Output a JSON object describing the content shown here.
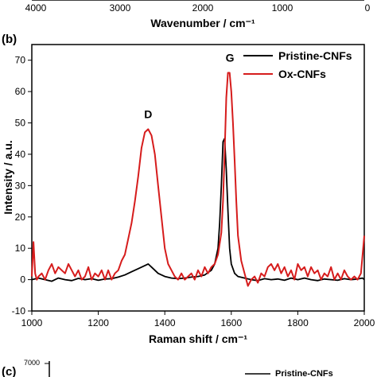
{
  "top_strip": {
    "ticks": [
      "4000",
      "3000",
      "2000",
      "1000",
      "0"
    ],
    "xlabel": "Wavenumber / cm⁻¹"
  },
  "chart_data": {
    "type": "line",
    "panel_label": "(b)",
    "xlabel": "Raman shift / cm⁻¹",
    "ylabel": "Intensity / a.u.",
    "xlim": [
      1000,
      2000
    ],
    "ylim": [
      -10,
      75
    ],
    "xticks": [
      1000,
      1200,
      1400,
      1600,
      1800,
      2000
    ],
    "yticks": [
      -10,
      0,
      10,
      20,
      30,
      40,
      50,
      60,
      70
    ],
    "legend_position": "top-right",
    "annotations": [
      {
        "text": "D",
        "x": 1350,
        "y": 50
      },
      {
        "text": "G",
        "x": 1596,
        "y": 68
      }
    ],
    "series": [
      {
        "name": "Pristine-CNFs",
        "color": "#000000",
        "x": [
          1000,
          1020,
          1040,
          1060,
          1080,
          1100,
          1120,
          1140,
          1160,
          1180,
          1200,
          1220,
          1240,
          1260,
          1280,
          1300,
          1320,
          1340,
          1350,
          1360,
          1380,
          1400,
          1420,
          1440,
          1460,
          1480,
          1500,
          1520,
          1540,
          1550,
          1560,
          1565,
          1570,
          1575,
          1580,
          1585,
          1590,
          1595,
          1600,
          1610,
          1620,
          1640,
          1660,
          1680,
          1700,
          1720,
          1740,
          1760,
          1780,
          1800,
          1820,
          1840,
          1860,
          1880,
          1900,
          1920,
          1940,
          1960,
          1980,
          1995,
          2000
        ],
        "y": [
          0,
          0.5,
          0,
          -0.5,
          0.5,
          0,
          -0.3,
          0.4,
          0,
          0.3,
          -0.2,
          0.2,
          0.3,
          0.8,
          1.5,
          2.5,
          3.5,
          4.5,
          5,
          4,
          2,
          1,
          0.5,
          0.3,
          0.5,
          0.8,
          1,
          1.5,
          3,
          5,
          10,
          18,
          30,
          44,
          45,
          35,
          22,
          10,
          5,
          2,
          1,
          0.5,
          0,
          -0.3,
          0.3,
          0,
          0.2,
          -0.2,
          0.5,
          0,
          0.5,
          0,
          -0.3,
          0.2,
          0,
          -0.2,
          0.3,
          0,
          0.2,
          0.5,
          0
        ]
      },
      {
        "name": "Ox-CNFs",
        "color": "#d61c1c",
        "x": [
          1000,
          1005,
          1010,
          1015,
          1020,
          1030,
          1040,
          1050,
          1060,
          1070,
          1080,
          1090,
          1100,
          1110,
          1120,
          1130,
          1140,
          1150,
          1160,
          1170,
          1180,
          1190,
          1200,
          1210,
          1220,
          1230,
          1240,
          1250,
          1260,
          1270,
          1280,
          1290,
          1300,
          1310,
          1320,
          1330,
          1340,
          1350,
          1360,
          1370,
          1380,
          1390,
          1400,
          1410,
          1420,
          1430,
          1440,
          1450,
          1460,
          1470,
          1480,
          1490,
          1500,
          1510,
          1520,
          1530,
          1540,
          1550,
          1560,
          1570,
          1575,
          1580,
          1585,
          1590,
          1595,
          1600,
          1605,
          1610,
          1615,
          1620,
          1630,
          1640,
          1650,
          1660,
          1670,
          1680,
          1690,
          1700,
          1710,
          1720,
          1730,
          1740,
          1750,
          1760,
          1770,
          1780,
          1790,
          1800,
          1810,
          1820,
          1830,
          1840,
          1850,
          1860,
          1870,
          1880,
          1890,
          1900,
          1910,
          1920,
          1930,
          1940,
          1950,
          1960,
          1970,
          1980,
          1990,
          1995,
          2000
        ],
        "y": [
          1,
          12,
          2,
          0,
          1,
          2,
          0,
          3,
          5,
          2,
          4,
          3,
          2,
          5,
          3,
          1,
          3,
          0,
          1,
          4,
          0,
          2,
          1,
          3,
          0,
          3,
          0,
          2,
          3,
          6,
          8,
          13,
          18,
          25,
          33,
          42,
          47,
          48,
          46,
          40,
          30,
          20,
          10,
          5,
          3,
          1,
          0,
          2,
          0,
          1,
          2,
          0,
          3,
          1,
          4,
          2,
          4,
          5,
          8,
          15,
          25,
          40,
          58,
          66,
          66,
          60,
          50,
          38,
          25,
          14,
          6,
          2,
          -2,
          0,
          1,
          -1,
          2,
          1,
          4,
          5,
          3,
          5,
          2,
          4,
          1,
          3,
          0,
          5,
          3,
          4,
          1,
          4,
          2,
          3,
          0,
          2,
          1,
          4,
          0,
          2,
          0,
          3,
          1,
          0,
          1,
          0,
          2,
          8,
          14
        ]
      }
    ]
  },
  "bottom_strip": {
    "panel_label": "(c)",
    "ytick": "7000",
    "legend_text": "Pristine-CNFs"
  }
}
